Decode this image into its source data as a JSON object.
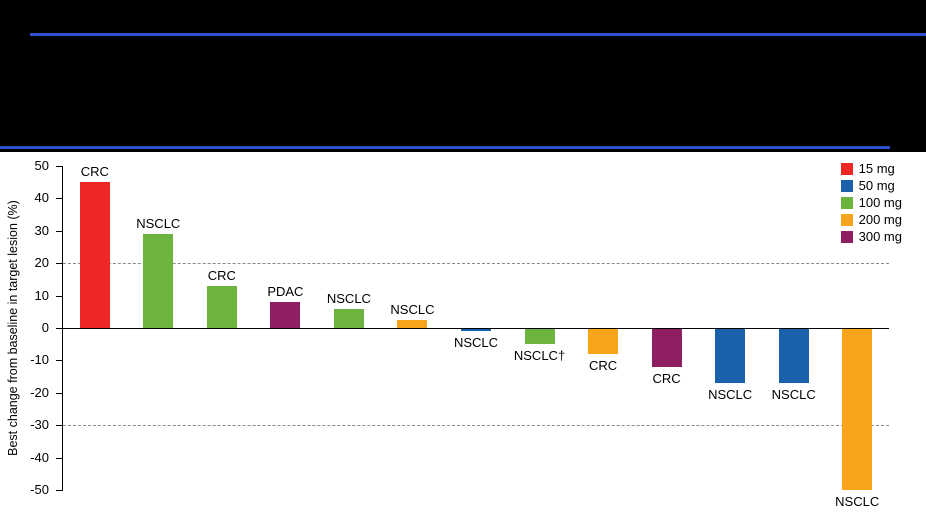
{
  "header": {
    "rule_color": "#2b50c8"
  },
  "chart_data": {
    "type": "bar",
    "title": "",
    "ylabel": "Best change from baseline in target lesion (%)",
    "xlabel": "",
    "ylim": [
      -50,
      50
    ],
    "yticks": [
      50,
      40,
      30,
      20,
      10,
      0,
      -10,
      -20,
      -30,
      -40,
      -50
    ],
    "dashed_gridlines": [
      20,
      -30
    ],
    "grid": "dashed reference lines at +20 and -30 only",
    "legend_position": "top-right",
    "legend": [
      {
        "label": "15 mg",
        "color": "#ee2724"
      },
      {
        "label": "50 mg",
        "color": "#1a61ab"
      },
      {
        "label": "100 mg",
        "color": "#6db33f"
      },
      {
        "label": "200 mg",
        "color": "#f9a51b"
      },
      {
        "label": "300 mg",
        "color": "#8e1f63"
      }
    ],
    "bars": [
      {
        "label": "CRC",
        "dose": "15 mg",
        "value": 45
      },
      {
        "label": "NSCLC",
        "dose": "100 mg",
        "value": 29
      },
      {
        "label": "CRC",
        "dose": "100 mg",
        "value": 13
      },
      {
        "label": "PDAC",
        "dose": "300 mg",
        "value": 8
      },
      {
        "label": "NSCLC",
        "dose": "100 mg",
        "value": 6
      },
      {
        "label": "NSCLC",
        "dose": "200 mg",
        "value": 2.5
      },
      {
        "label": "NSCLC",
        "dose": "50 mg",
        "value": -1
      },
      {
        "label": "NSCLC†",
        "dose": "100 mg",
        "value": -5
      },
      {
        "label": "CRC",
        "dose": "200 mg",
        "value": -8
      },
      {
        "label": "CRC",
        "dose": "300 mg",
        "value": -12
      },
      {
        "label": "NSCLC",
        "dose": "50 mg",
        "value": -17
      },
      {
        "label": "NSCLC",
        "dose": "50 mg",
        "value": -17
      },
      {
        "label": "NSCLC",
        "dose": "200 mg",
        "value": -50
      }
    ]
  }
}
